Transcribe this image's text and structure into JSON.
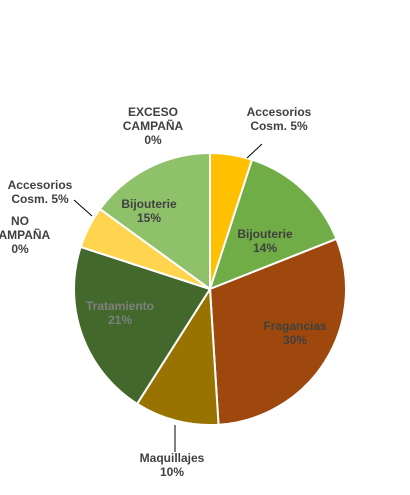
{
  "chart_data": {
    "type": "pie",
    "title": "",
    "slices": [
      {
        "label": [
          "Accesorios",
          "Cosm. 5%"
        ],
        "value": 5,
        "color": "#FFC000",
        "label_color": "#404040",
        "label_pos": "outside"
      },
      {
        "label": [
          "Bijouterie",
          "14%"
        ],
        "value": 14,
        "color": "#70AD47",
        "label_color": "#404040",
        "label_pos": "inside"
      },
      {
        "label": [
          "Fragancias",
          "30%"
        ],
        "value": 30,
        "color": "#9E480E",
        "label_color": "#404040",
        "label_pos": "inside"
      },
      {
        "label": [
          "Maquillajes",
          "10%"
        ],
        "value": 10,
        "color": "#997300",
        "label_color": "#404040",
        "label_pos": "outside"
      },
      {
        "label": [
          "Tratamiento",
          "21%"
        ],
        "value": 21,
        "color": "#43682B",
        "label_color": "#7F7F7F",
        "label_pos": "inside"
      },
      {
        "label": [
          "NO",
          "CAMPAÑA",
          "0%"
        ],
        "value": 0,
        "color": "#A9D18E",
        "label_color": "#404040",
        "label_pos": "outside"
      },
      {
        "label": [
          "Accesorios",
          "Cosm. 5%"
        ],
        "value": 5,
        "color": "#FFD44F",
        "label_color": "#404040",
        "label_pos": "outside"
      },
      {
        "label": [
          "Bijouterie",
          "15%"
        ],
        "value": 15,
        "color": "#8FC16A",
        "label_color": "#404040",
        "label_pos": "inside"
      },
      {
        "label": [
          "EXCESO",
          "CAMPAÑA",
          "0%"
        ],
        "value": 0,
        "color": "#C5E0B4",
        "label_color": "#404040",
        "label_pos": "outside"
      }
    ],
    "start_angle": "top",
    "direction": "clockwise"
  }
}
